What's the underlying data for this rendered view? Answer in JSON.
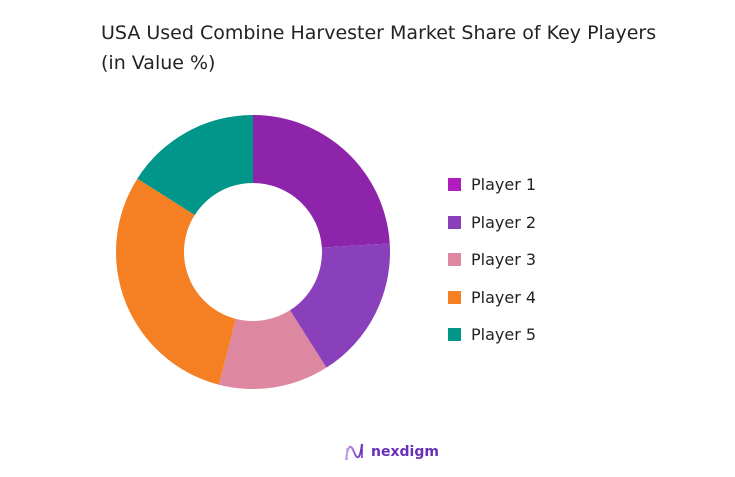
{
  "title": "USA Used Combine Harvester Market Share of Key Players (in Value %)",
  "chart_data": {
    "type": "pie",
    "subtype": "donut",
    "title": "USA Used Combine Harvester Market Share of Key Players (in Value %)",
    "categories": [
      "Player 1",
      "Player 2",
      "Player 3",
      "Player 4",
      "Player 5"
    ],
    "values": [
      24,
      17,
      13,
      30,
      16
    ],
    "colors": [
      "#8e24aa",
      "#8a40bb",
      "#de87a1",
      "#f58024",
      "#00968a"
    ],
    "legend_colors": [
      "#b01dbf",
      "#8a40bb",
      "#de87a1",
      "#f58024",
      "#00968a"
    ],
    "legend_position": "right",
    "start_angle_deg": 0,
    "direction": "clockwise"
  },
  "legend": {
    "items": [
      {
        "label": "Player 1"
      },
      {
        "label": "Player 2"
      },
      {
        "label": "Player 3"
      },
      {
        "label": "Player 4"
      },
      {
        "label": "Player 5"
      }
    ]
  },
  "logo": {
    "text": "nexdigm"
  }
}
